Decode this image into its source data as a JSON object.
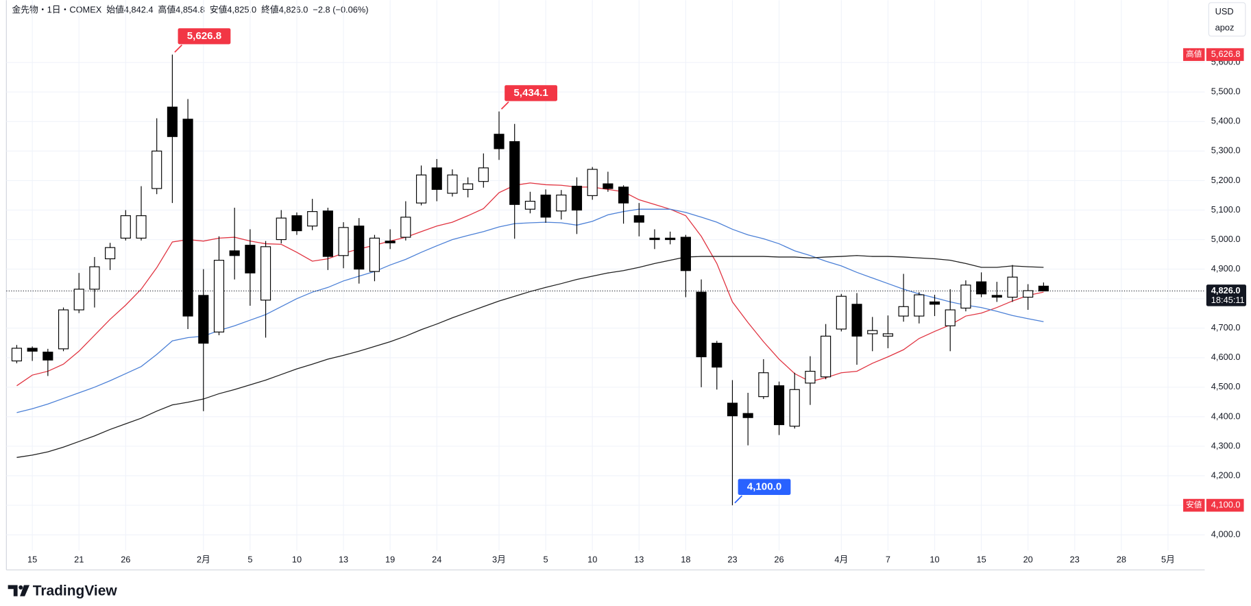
{
  "chart_data": {
    "type": "candlestick",
    "header": {
      "title": "金先物・1日・COMEX",
      "items": [
        {
          "label": "始値",
          "value": "4,842.4"
        },
        {
          "label": "高値",
          "value": "4,854.8"
        },
        {
          "label": "安値",
          "value": "4,825.0"
        },
        {
          "label": "終値",
          "value": "4,826.0"
        }
      ],
      "change": "−2.8 (−0.06%)"
    },
    "currency": "USD",
    "user": "apoz",
    "brand": "TradingView",
    "categories": [
      null,
      "15",
      null,
      null,
      "21",
      null,
      null,
      "26",
      null,
      null,
      null,
      null,
      "2月",
      null,
      null,
      "5",
      null,
      null,
      "10",
      null,
      null,
      "13",
      null,
      null,
      "19",
      null,
      null,
      "24",
      null,
      null,
      null,
      "3月",
      null,
      null,
      "5",
      null,
      null,
      "10",
      null,
      null,
      "13",
      null,
      null,
      "18",
      null,
      null,
      "23",
      null,
      null,
      "26",
      null,
      null,
      null,
      "4月",
      null,
      null,
      "7",
      null,
      null,
      "10",
      null,
      null,
      "15",
      null,
      null,
      "20",
      null,
      null,
      "23",
      null,
      null,
      "28",
      null,
      null,
      "5月",
      null
    ],
    "open": [
      4589,
      4632,
      4619,
      4630,
      4762,
      4832,
      4935,
      5005,
      5005,
      5173,
      5449,
      5408,
      4811,
      4687,
      4962,
      4981,
      4795,
      5000,
      5081,
      5046,
      5097,
      4946,
      5046,
      4892,
      4995,
      5008,
      5124,
      5243,
      5157,
      5170,
      5197,
      5357,
      5332,
      5103,
      5151,
      5097,
      5181,
      5149,
      5189,
      5178,
      5081,
      5005,
      5005,
      5008,
      4822,
      4649,
      4446,
      4411,
      4468,
      4505,
      4368,
      4514,
      4535,
      4697,
      4781,
      4681,
      4673,
      4741,
      4741,
      4789,
      4708,
      4768,
      4857,
      4811,
      4805,
      4805,
      4842.4,
      null,
      null,
      null,
      null,
      null,
      null,
      null,
      null,
      null
    ],
    "high": [
      4643,
      4638,
      4630,
      4770,
      4887,
      4941,
      4989,
      5100,
      5181,
      5411,
      5626.8,
      5476,
      4900,
      5011,
      5108,
      5035,
      4995,
      5100,
      5092,
      5138,
      5108,
      5059,
      5073,
      5016,
      5035,
      5130,
      5251,
      5273,
      5238,
      5211,
      5292,
      5434.1,
      5392,
      5162,
      5170,
      5168,
      5211,
      5246,
      5230,
      5184,
      5124,
      5035,
      5027,
      5016,
      4865,
      4657,
      4524,
      4481,
      4595,
      4519,
      4549,
      4605,
      4714,
      4816,
      4819,
      4738,
      4743,
      4884,
      4822,
      4813,
      4832,
      4862,
      4889,
      4857,
      4914,
      4849,
      4854.8,
      null,
      null,
      null,
      null,
      null,
      null,
      null,
      null,
      null
    ],
    "low": [
      4581,
      4589,
      4538,
      4622,
      4751,
      4770,
      4897,
      4997,
      4997,
      5154,
      5124,
      4697,
      4419,
      4676,
      4865,
      4776,
      4668,
      4987,
      5016,
      5032,
      4897,
      4903,
      4851,
      4859,
      4968,
      4997,
      5116,
      5130,
      5146,
      5143,
      5176,
      5270,
      5003,
      5089,
      5057,
      5068,
      5019,
      5135,
      5162,
      5054,
      5011,
      4968,
      4984,
      4805,
      4500,
      4492,
      4100.0,
      4303,
      4460,
      4338,
      4360,
      4440,
      4527,
      4689,
      4576,
      4622,
      4632,
      4722,
      4716,
      4741,
      4622,
      4757,
      4805,
      4789,
      4789,
      4762,
      4825.0,
      null,
      null,
      null,
      null,
      null,
      null,
      null,
      null,
      null
    ],
    "close": [
      4632,
      4622,
      4592,
      4762,
      4832,
      4908,
      4973,
      5081,
      5081,
      5300,
      5349,
      4741,
      4649,
      4930,
      4946,
      4887,
      4976,
      5073,
      5030,
      5095,
      4943,
      5041,
      4900,
      5005,
      4989,
      5076,
      5219,
      5170,
      5219,
      5189,
      5243,
      5308,
      5119,
      5130,
      5076,
      5151,
      5100,
      5238,
      5173,
      5124,
      5059,
      5000,
      5000,
      4895,
      4603,
      4568,
      4403,
      4397,
      4549,
      4373,
      4492,
      4554,
      4673,
      4808,
      4673,
      4692,
      4681,
      4773,
      4813,
      4781,
      4762,
      4846,
      4816,
      4805,
      4873,
      4827,
      4826.0,
      null,
      null,
      null,
      null,
      null,
      null,
      null,
      null,
      null
    ],
    "up_color": "#ffffff",
    "down_color": "#000000",
    "series": [
      {
        "color": "#e0323f",
        "values": [
          4505,
          4541,
          4554,
          4578,
          4622,
          4676,
          4730,
          4778,
          4832,
          4905,
          4992,
          5000,
          4995,
          5005,
          5008,
          4995,
          4986,
          4984,
          4957,
          4927,
          4935,
          4954,
          4968,
          4981,
          4995,
          5008,
          5027,
          5046,
          5059,
          5081,
          5105,
          5159,
          5184,
          5192,
          5186,
          5184,
          5178,
          5178,
          5170,
          5162,
          5135,
          5119,
          5103,
          5081,
          5011,
          4919,
          4789,
          4719,
          4654,
          4595,
          4546,
          4519,
          4532,
          4549,
          4554,
          4581,
          4603,
          4627,
          4665,
          4689,
          4711,
          4741,
          4751,
          4770,
          4792,
          4811,
          4822,
          null,
          null,
          null,
          null,
          null,
          null,
          null,
          null,
          null
        ]
      },
      {
        "color": "#4a7fd6",
        "values": [
          4414,
          4427,
          4443,
          4462,
          4481,
          4500,
          4522,
          4546,
          4570,
          4611,
          4657,
          4668,
          4673,
          4692,
          4708,
          4727,
          4746,
          4773,
          4800,
          4822,
          4838,
          4860,
          4876,
          4892,
          4914,
          4933,
          4957,
          4979,
          5000,
          5014,
          5027,
          5043,
          5054,
          5057,
          5059,
          5057,
          5049,
          5062,
          5084,
          5095,
          5103,
          5103,
          5103,
          5092,
          5076,
          5059,
          5035,
          5016,
          5003,
          4986,
          4962,
          4946,
          4927,
          4911,
          4889,
          4870,
          4851,
          4832,
          4816,
          4803,
          4789,
          4778,
          4770,
          4757,
          4743,
          4732,
          4722,
          null,
          null,
          null,
          null,
          null,
          null,
          null,
          null,
          null
        ]
      },
      {
        "color": "#1e1e1e",
        "values": [
          4262,
          4270,
          4281,
          4297,
          4316,
          4335,
          4357,
          4376,
          4395,
          4419,
          4440,
          4449,
          4460,
          4478,
          4492,
          4508,
          4524,
          4543,
          4562,
          4578,
          4595,
          4608,
          4622,
          4638,
          4654,
          4673,
          4695,
          4714,
          4735,
          4754,
          4773,
          4792,
          4808,
          4824,
          4838,
          4851,
          4865,
          4876,
          4887,
          4895,
          4906,
          4919,
          4930,
          4941,
          4943,
          4943,
          4943,
          4943,
          4943,
          4941,
          4941,
          4938,
          4941,
          4943,
          4946,
          4943,
          4943,
          4941,
          4938,
          4935,
          4930,
          4919,
          4906,
          4906,
          4911,
          4908,
          4906,
          null,
          null,
          null,
          null,
          null,
          null,
          null,
          null,
          null
        ]
      }
    ],
    "ylim": [
      3946,
      5811
    ],
    "yticks": [
      {
        "value": 4000,
        "label": "4,000.0"
      },
      {
        "value": 4100,
        "label": "4,100.0"
      },
      {
        "value": 4200,
        "label": "4,200.0"
      },
      {
        "value": 4300,
        "label": "4,300.0"
      },
      {
        "value": 4400,
        "label": "4,400.0"
      },
      {
        "value": 4500,
        "label": "4,500.0"
      },
      {
        "value": 4600,
        "label": "4,600.0"
      },
      {
        "value": 4700,
        "label": "4,700.0"
      },
      {
        "value": 4800,
        "label": "4,800.0"
      },
      {
        "value": 4900,
        "label": "4,900.0"
      },
      {
        "value": 5000,
        "label": "5,000.0"
      },
      {
        "value": 5100,
        "label": "5,100.0"
      },
      {
        "value": 5200,
        "label": "5,200.0"
      },
      {
        "value": 5300,
        "label": "5,300.0"
      },
      {
        "value": 5400,
        "label": "5,400.0"
      },
      {
        "value": 5500,
        "label": "5,500.0"
      },
      {
        "value": 5600,
        "label": "5,600.0"
      }
    ],
    "grid": true,
    "high_callouts": [
      {
        "value": 5626.8,
        "label": "5,626.8",
        "color": "#f23645"
      },
      {
        "value": 5434.1,
        "label": "5,434.1",
        "color": "#f23645"
      }
    ],
    "low_callouts": [
      {
        "value": 4100.0,
        "label": "4,100.0",
        "color": "#2962ff"
      }
    ],
    "price_tags": [
      {
        "name": "高値",
        "value": 5626.8,
        "label": "5,626.8",
        "color": "#f23645"
      },
      {
        "name": "安値",
        "value": 4100.0,
        "label": "4,100.0",
        "color": "#f23645"
      }
    ],
    "last_price": {
      "value": 4826.0,
      "label": "4,826.0",
      "countdown": "18:45:11",
      "color": "#131722"
    }
  }
}
